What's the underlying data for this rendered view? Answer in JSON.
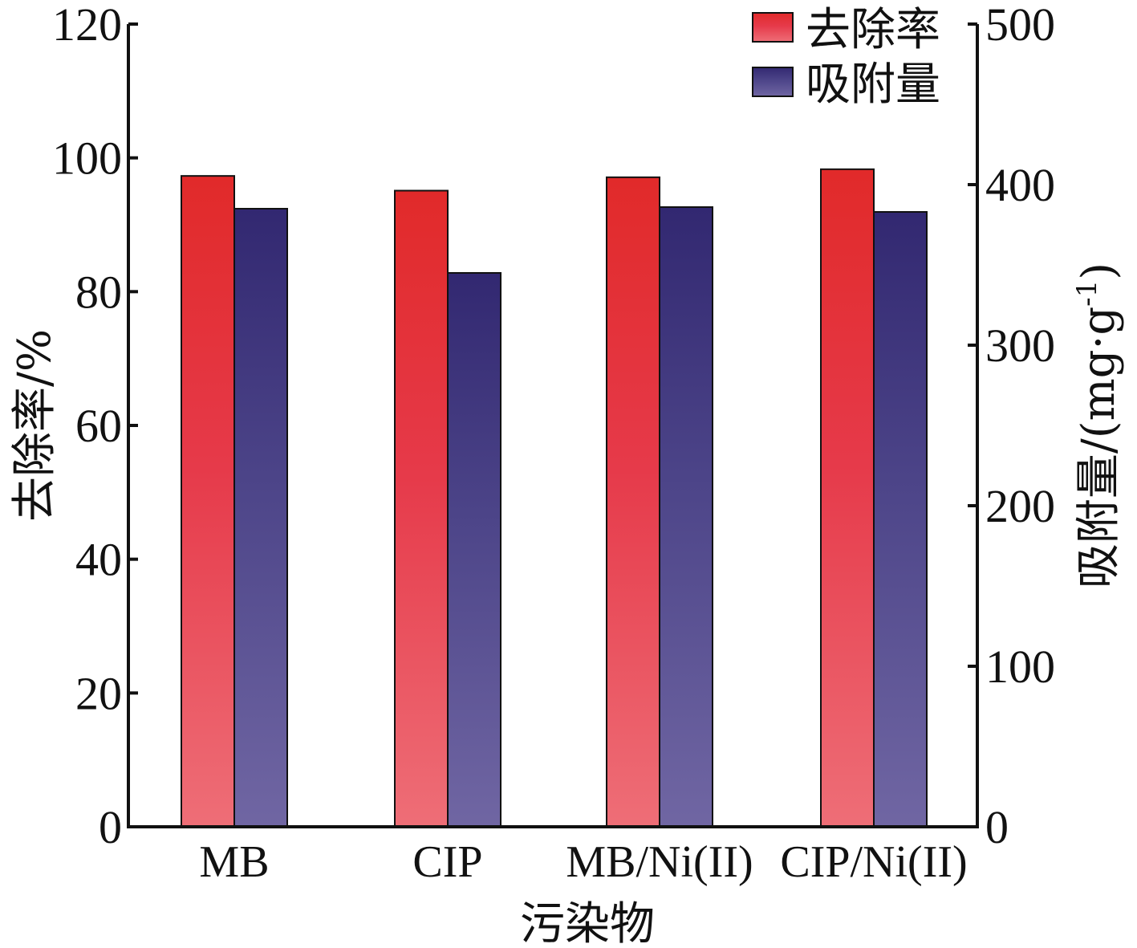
{
  "chart_data": {
    "type": "bar",
    "title": "",
    "categories": [
      "MB",
      "CIP",
      "MB/Ni(II)",
      "CIP/Ni(II)"
    ],
    "xlabel": "污染物",
    "ylabel": "去除率/%",
    "ylabel_right_main": "吸附量/(mg·g",
    "ylabel_right_sup": "-1",
    "ylabel_right_close": ")",
    "ylim": [
      0,
      120
    ],
    "yticks": [
      "0",
      "20",
      "40",
      "60",
      "80",
      "100",
      "120"
    ],
    "ylim_right": [
      0,
      500
    ],
    "yticks_right": [
      "0",
      "100",
      "200",
      "300",
      "400",
      "500"
    ],
    "grid": false,
    "legend_position": "top-right",
    "series": [
      {
        "name": "去除率",
        "axis": "left",
        "values": [
          97.3,
          95.1,
          97.1,
          98.3
        ],
        "color_top": "#e12a2a",
        "color_bottom": "#ee6e77"
      },
      {
        "name": "吸附量",
        "axis": "right",
        "values": [
          385,
          345,
          386,
          383
        ],
        "color_top": "#322871",
        "color_bottom": "#7066a3"
      }
    ]
  }
}
